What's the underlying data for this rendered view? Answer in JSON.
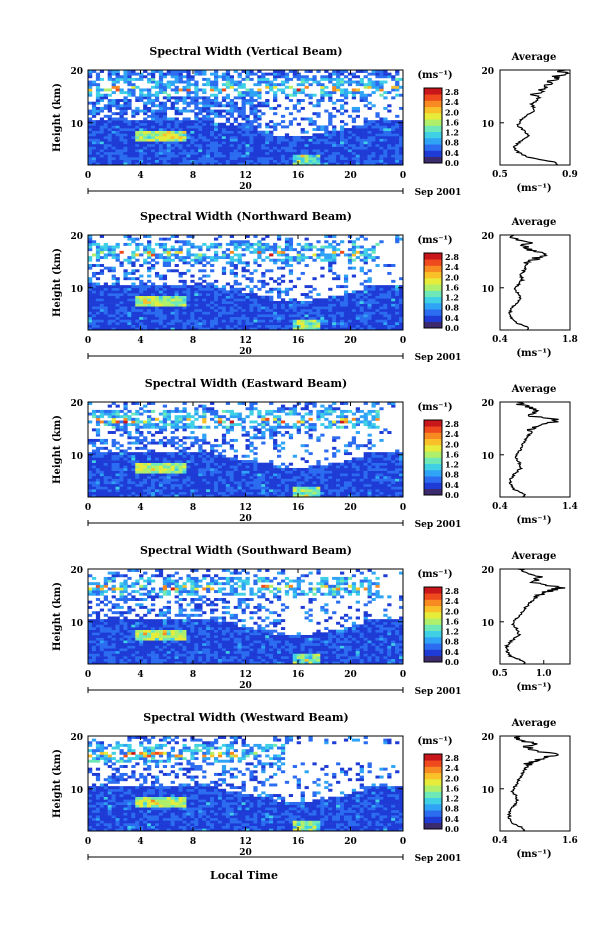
{
  "page": {
    "xlabel": "Local Time",
    "colorbar_unit": "(ms⁻¹)",
    "colorbar_ticks": [
      "2.8",
      "2.4",
      "2.0",
      "1.6",
      "1.2",
      "0.8",
      "0.4",
      "0.0"
    ],
    "colorbar_colors": [
      "#3b2a6e",
      "#1e3bd6",
      "#2b6cf0",
      "#2fa3f5",
      "#3fd0e6",
      "#6fe8b8",
      "#b0ef6a",
      "#e7ec3a",
      "#f9c02a",
      "#f88a22",
      "#ef4a1d",
      "#c8161a"
    ],
    "x_ticks": [
      "0",
      "4",
      "8",
      "12",
      "16",
      "20",
      "0"
    ],
    "y_ticks": [
      "20",
      "10"
    ],
    "date_day": "20",
    "date_month": "Sep 2001",
    "ylabel": "Height (km)",
    "avg_title": "Average",
    "avg_unit": "(ms⁻¹)"
  },
  "chart_data": [
    {
      "type": "heatmap",
      "title": "Spectral Width (Vertical Beam)",
      "ylabel": "Height (km)",
      "xlabel": "",
      "xlim": [
        0,
        24
      ],
      "ylim": [
        2,
        20
      ],
      "colorbar_range": [
        0.0,
        2.8
      ],
      "average_profile": {
        "xlim": [
          0.5,
          0.9
        ],
        "x_ticks": [
          "0.5",
          "0.9"
        ],
        "height": [
          2.5,
          3.5,
          4.5,
          5.5,
          6.5,
          7.5,
          8.5,
          9.5,
          10.5,
          11.5,
          12.5,
          13.5,
          14.5,
          15.5,
          16.5,
          17.5,
          18.5,
          19.5
        ],
        "values": [
          0.82,
          0.66,
          0.6,
          0.58,
          0.62,
          0.66,
          0.64,
          0.6,
          0.62,
          0.66,
          0.7,
          0.68,
          0.72,
          0.7,
          0.74,
          0.78,
          0.82,
          0.86
        ]
      }
    },
    {
      "type": "heatmap",
      "title": "Spectral Width (Northward Beam)",
      "ylabel": "Height (km)",
      "xlabel": "",
      "xlim": [
        0,
        24
      ],
      "ylim": [
        2,
        20
      ],
      "colorbar_range": [
        0.0,
        2.8
      ],
      "average_profile": {
        "xlim": [
          0.4,
          1.8
        ],
        "x_ticks": [
          "0.4",
          "1.8"
        ],
        "height": [
          2.5,
          3.5,
          4.5,
          5.5,
          6.5,
          7.5,
          8.5,
          9.5,
          10.5,
          11.5,
          12.5,
          13.5,
          14.5,
          15.5,
          16.5,
          17.5,
          18.5,
          19.5
        ],
        "values": [
          0.95,
          0.7,
          0.62,
          0.6,
          0.66,
          0.78,
          0.8,
          0.7,
          0.75,
          0.85,
          0.82,
          0.9,
          0.95,
          1.1,
          1.3,
          0.85,
          1.0,
          0.7
        ]
      }
    },
    {
      "type": "heatmap",
      "title": "Spectral Width (Eastward Beam)",
      "ylabel": "Height (km)",
      "xlabel": "",
      "xlim": [
        0,
        24
      ],
      "ylim": [
        2,
        20
      ],
      "colorbar_range": [
        0.0,
        2.8
      ],
      "average_profile": {
        "xlim": [
          0.4,
          1.4
        ],
        "x_ticks": [
          "0.4",
          "1.4"
        ],
        "height": [
          2.5,
          3.5,
          4.5,
          5.5,
          6.5,
          7.5,
          8.5,
          9.5,
          10.5,
          11.5,
          12.5,
          13.5,
          14.5,
          15.5,
          16.5,
          17.5,
          18.5,
          19.5
        ],
        "values": [
          0.75,
          0.6,
          0.55,
          0.56,
          0.62,
          0.7,
          0.68,
          0.62,
          0.66,
          0.72,
          0.74,
          0.8,
          0.85,
          0.95,
          1.25,
          0.8,
          0.9,
          0.7
        ]
      }
    },
    {
      "type": "heatmap",
      "title": "Spectral Width (Southward Beam)",
      "ylabel": "Height (km)",
      "xlabel": "",
      "xlim": [
        0,
        24
      ],
      "ylim": [
        2,
        20
      ],
      "colorbar_range": [
        0.0,
        2.8
      ],
      "average_profile": {
        "xlim": [
          0.5,
          1.3
        ],
        "x_ticks": [
          "0.5",
          "1.0"
        ],
        "height": [
          2.5,
          3.5,
          4.5,
          5.5,
          6.5,
          7.5,
          8.5,
          9.5,
          10.5,
          11.5,
          12.5,
          13.5,
          14.5,
          15.5,
          16.5,
          17.5,
          18.5,
          19.5
        ],
        "values": [
          0.78,
          0.62,
          0.58,
          0.58,
          0.64,
          0.72,
          0.7,
          0.64,
          0.68,
          0.74,
          0.78,
          0.84,
          0.9,
          1.0,
          1.2,
          0.85,
          0.95,
          0.72
        ]
      }
    },
    {
      "type": "heatmap",
      "title": "Spectral Width (Westward Beam)",
      "ylabel": "Height (km)",
      "xlabel": "Local Time",
      "xlim": [
        0,
        24
      ],
      "ylim": [
        2,
        20
      ],
      "colorbar_range": [
        0.0,
        2.8
      ],
      "average_profile": {
        "xlim": [
          0.4,
          1.6
        ],
        "x_ticks": [
          "0.4",
          "1.6"
        ],
        "height": [
          2.5,
          3.5,
          4.5,
          5.5,
          6.5,
          7.5,
          8.5,
          9.5,
          10.5,
          11.5,
          12.5,
          13.5,
          14.5,
          15.5,
          16.5,
          17.5,
          18.5,
          19.5
        ],
        "values": [
          0.8,
          0.62,
          0.56,
          0.56,
          0.62,
          0.7,
          0.68,
          0.62,
          0.66,
          0.72,
          0.76,
          0.82,
          0.88,
          1.0,
          1.35,
          0.85,
          0.95,
          0.7
        ]
      }
    }
  ]
}
